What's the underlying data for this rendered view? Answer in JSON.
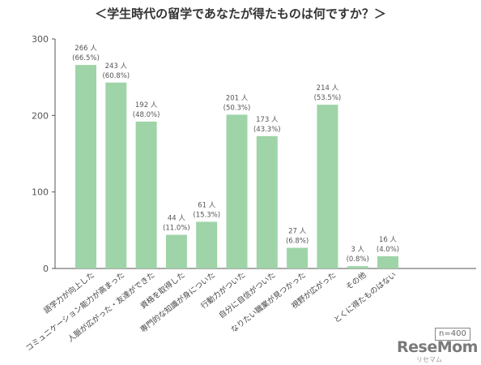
{
  "title": "＜学生時代の留学であなたが得たものは何ですか？＞",
  "note": "n=400",
  "logo": {
    "text": "ReseMom",
    "sub": "リセマム"
  },
  "colors": {
    "bar": "#9ed4a8",
    "axis": "#555555",
    "grid": "#cccccc",
    "text": "#555555"
  },
  "chart_data": {
    "type": "bar",
    "categories": [
      "語学力が向上した",
      "コミュニケーション能力が高まった",
      "人脈が広がった・友達ができた",
      "資格を取得した",
      "専門的な知識が身についた",
      "行動力がついた",
      "自分に自信がついた",
      "なりたい職業が見つかった",
      "視野が広がった",
      "その他",
      "とくに得たものはない"
    ],
    "values": [
      266,
      243,
      192,
      44,
      61,
      201,
      173,
      27,
      214,
      3,
      16
    ],
    "value_labels": [
      "266 人",
      "243 人",
      "192 人",
      "44 人",
      "61 人",
      "201 人",
      "173 人",
      "27 人",
      "214 人",
      "3 人",
      "16 人"
    ],
    "percent_labels": [
      "(66.5%)",
      "(60.8%)",
      "(48.0%)",
      "(11.0%)",
      "(15.3%)",
      "(50.3%)",
      "(43.3%)",
      "(6.8%)",
      "(53.5%)",
      "(0.8%)",
      "(4.0%)"
    ],
    "yticks": [
      "0",
      "100",
      "200",
      "300"
    ],
    "ylim": [
      0,
      300
    ],
    "grid": false
  }
}
